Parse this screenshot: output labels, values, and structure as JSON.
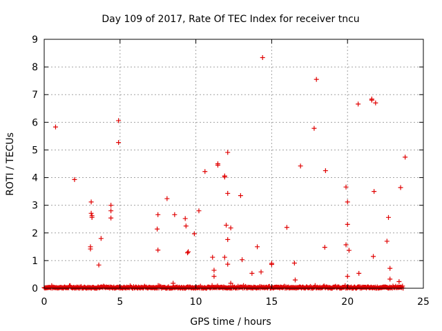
{
  "chart_data": {
    "type": "scatter",
    "title": "Day 109 of 2017, Rate Of TEC Index for receiver tncu",
    "xlabel": "GPS time / hours",
    "ylabel": "ROTI / TECUs",
    "xlim": [
      0,
      25
    ],
    "ylim": [
      0,
      9
    ],
    "xticks": [
      "0",
      "5",
      "10",
      "15",
      "20",
      "25"
    ],
    "yticks": [
      "0",
      "1",
      "2",
      "3",
      "4",
      "5",
      "6",
      "7",
      "8",
      "9"
    ],
    "grid": true,
    "marker": "plus",
    "color": "#e00000",
    "baseline_band": {
      "x_from": 0.0,
      "x_to": 23.7,
      "y_typical": 0.03,
      "y_max": 0.1
    },
    "points": [
      [
        0.75,
        5.83
      ],
      [
        4.9,
        6.06
      ],
      [
        4.9,
        5.27
      ],
      [
        2.0,
        3.93
      ],
      [
        3.1,
        3.12
      ],
      [
        3.1,
        2.71
      ],
      [
        3.15,
        2.62
      ],
      [
        3.15,
        2.56
      ],
      [
        3.05,
        1.5
      ],
      [
        3.05,
        1.42
      ],
      [
        3.75,
        1.8
      ],
      [
        3.6,
        0.84
      ],
      [
        4.4,
        3.0
      ],
      [
        4.4,
        2.8
      ],
      [
        4.4,
        2.54
      ],
      [
        7.5,
        2.66
      ],
      [
        7.45,
        2.14
      ],
      [
        7.5,
        1.38
      ],
      [
        8.1,
        3.24
      ],
      [
        8.6,
        2.66
      ],
      [
        9.3,
        2.52
      ],
      [
        9.35,
        2.25
      ],
      [
        9.5,
        1.32
      ],
      [
        9.45,
        1.28
      ],
      [
        8.5,
        0.18
      ],
      [
        9.9,
        1.97
      ],
      [
        10.2,
        2.8
      ],
      [
        10.6,
        4.22
      ],
      [
        11.45,
        4.5
      ],
      [
        11.45,
        4.45
      ],
      [
        11.9,
        4.06
      ],
      [
        11.9,
        4.02
      ],
      [
        12.1,
        4.91
      ],
      [
        12.1,
        3.43
      ],
      [
        12.0,
        2.28
      ],
      [
        12.3,
        2.18
      ],
      [
        12.1,
        1.76
      ],
      [
        11.1,
        1.12
      ],
      [
        11.2,
        0.65
      ],
      [
        11.2,
        0.43
      ],
      [
        11.9,
        1.12
      ],
      [
        12.1,
        0.87
      ],
      [
        12.3,
        0.18
      ],
      [
        12.95,
        3.35
      ],
      [
        13.05,
        1.03
      ],
      [
        13.7,
        0.54
      ],
      [
        14.05,
        1.5
      ],
      [
        14.3,
        0.59
      ],
      [
        14.4,
        8.34
      ],
      [
        15.0,
        0.9
      ],
      [
        15.0,
        0.86
      ],
      [
        16.0,
        2.2
      ],
      [
        16.5,
        0.91
      ],
      [
        16.55,
        0.3
      ],
      [
        16.9,
        4.42
      ],
      [
        17.8,
        5.78
      ],
      [
        17.95,
        7.55
      ],
      [
        18.55,
        4.25
      ],
      [
        18.5,
        1.48
      ],
      [
        19.9,
        3.66
      ],
      [
        20.0,
        3.12
      ],
      [
        20.0,
        2.31
      ],
      [
        19.9,
        1.57
      ],
      [
        20.1,
        1.37
      ],
      [
        20.0,
        0.43
      ],
      [
        20.7,
        6.66
      ],
      [
        20.75,
        0.54
      ],
      [
        21.6,
        6.84
      ],
      [
        21.6,
        6.8
      ],
      [
        21.85,
        6.7
      ],
      [
        21.75,
        3.5
      ],
      [
        21.7,
        1.15
      ],
      [
        22.6,
        1.7
      ],
      [
        22.7,
        2.56
      ],
      [
        22.8,
        0.72
      ],
      [
        22.8,
        0.33
      ],
      [
        23.4,
        0.24
      ],
      [
        23.5,
        3.64
      ],
      [
        23.8,
        4.74
      ]
    ]
  }
}
